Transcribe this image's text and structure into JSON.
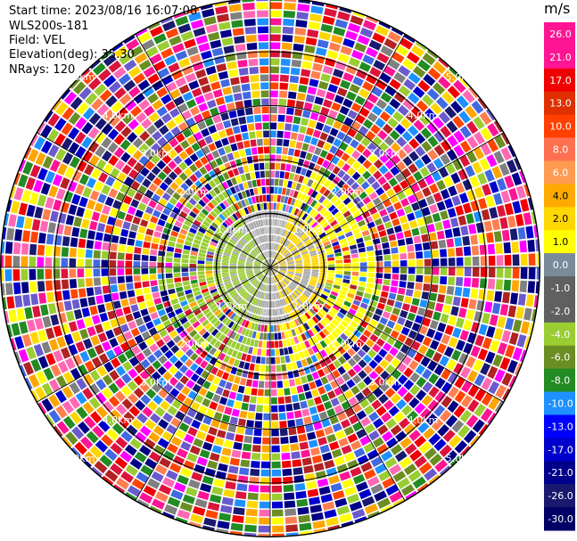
{
  "header": {
    "start_time": "Start time: 2023/08/16 16:07:08",
    "instrument": "WLS200s-181",
    "field": "Field: VEL",
    "elevation": "Elevation(deg): 35.30",
    "nrays": "NRays: 120"
  },
  "colorbar": {
    "unit": "m/s",
    "ticks": [
      "26.0",
      "21.0",
      "17.0",
      "13.0",
      "10.0",
      "8.0",
      "6.0",
      "4.0",
      "2.0",
      "1.0",
      "0.0",
      "-1.0",
      "-2.0",
      "-4.0",
      "-6.0",
      "-8.0",
      "-10.0",
      "-13.0",
      "-17.0",
      "-21.0",
      "-26.0",
      "-30.0"
    ],
    "colors": [
      "#ff1493",
      "#ff1493",
      "#f00000",
      "#e03000",
      "#ff4000",
      "#ff7050",
      "#ff9a50",
      "#ffaa00",
      "#ffd700",
      "#ffff00",
      "#7a8a9a",
      "#606060",
      "#606060",
      "#9acd32",
      "#6b8e23",
      "#228b22",
      "#1e90ff",
      "#0000ff",
      "#0000cd",
      "#00008b",
      "#191970",
      "#000066"
    ]
  },
  "chart_data": {
    "type": "ppi_polar",
    "title": "",
    "field": "VEL",
    "units": "m/s",
    "nrays": 120,
    "elevation_deg": 35.3,
    "range_ring_labels": [
      "1.0km",
      "2.0km",
      "3.0km",
      "4.0km",
      "5.0km"
    ],
    "colorbar_ticks": [
      26.0,
      21.0,
      17.0,
      13.0,
      10.0,
      8.0,
      6.0,
      4.0,
      2.0,
      1.0,
      0.0,
      -1.0,
      -2.0,
      -4.0,
      -6.0,
      -8.0,
      -10.0,
      -13.0,
      -17.0,
      -21.0,
      -26.0,
      -30.0
    ],
    "inner_valid_range_km": [
      0,
      2.0
    ],
    "inner_valid_values_ms": {
      "west_sector": -2.0,
      "east_sector": 2.0,
      "near_center": 0.0
    }
  }
}
